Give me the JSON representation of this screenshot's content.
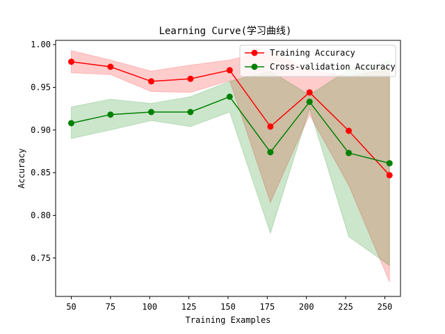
{
  "chart_data": {
    "type": "line",
    "title": "Learning Curve(学习曲线)",
    "xlabel": "Training Examples",
    "ylabel": "Accuracy",
    "xlim": [
      40,
      260
    ],
    "ylim": [
      0.705,
      1.005
    ],
    "xticks": [
      50,
      75,
      100,
      125,
      150,
      175,
      200,
      225,
      250
    ],
    "yticks": [
      0.75,
      0.8,
      0.85,
      0.9,
      0.95,
      1.0
    ],
    "ytick_labels": [
      "0.75",
      "0.80",
      "0.85",
      "0.90",
      "0.95",
      "1.00"
    ],
    "x": [
      50,
      75,
      101,
      126,
      151,
      177,
      202,
      227,
      253
    ],
    "legend_position": "top-right",
    "grid": false,
    "series": [
      {
        "name": "Training Accuracy",
        "color": "#ff0000",
        "values": [
          0.98,
          0.974,
          0.957,
          0.96,
          0.97,
          0.904,
          0.944,
          0.899,
          0.847
        ],
        "lower": [
          0.967,
          0.965,
          0.945,
          0.944,
          0.958,
          0.815,
          0.918,
          0.835,
          0.722
        ],
        "upper": [
          0.993,
          0.982,
          0.969,
          0.976,
          0.982,
          0.993,
          0.97,
          0.963,
          0.972
        ]
      },
      {
        "name": "Cross-validation Accuracy",
        "color": "#008000",
        "values": [
          0.908,
          0.918,
          0.921,
          0.921,
          0.939,
          0.874,
          0.933,
          0.873,
          0.861
        ],
        "lower": [
          0.89,
          0.9,
          0.911,
          0.904,
          0.921,
          0.779,
          0.925,
          0.775,
          0.741
        ],
        "upper": [
          0.927,
          0.936,
          0.931,
          0.939,
          0.957,
          0.969,
          0.941,
          0.971,
          0.981
        ]
      }
    ]
  }
}
